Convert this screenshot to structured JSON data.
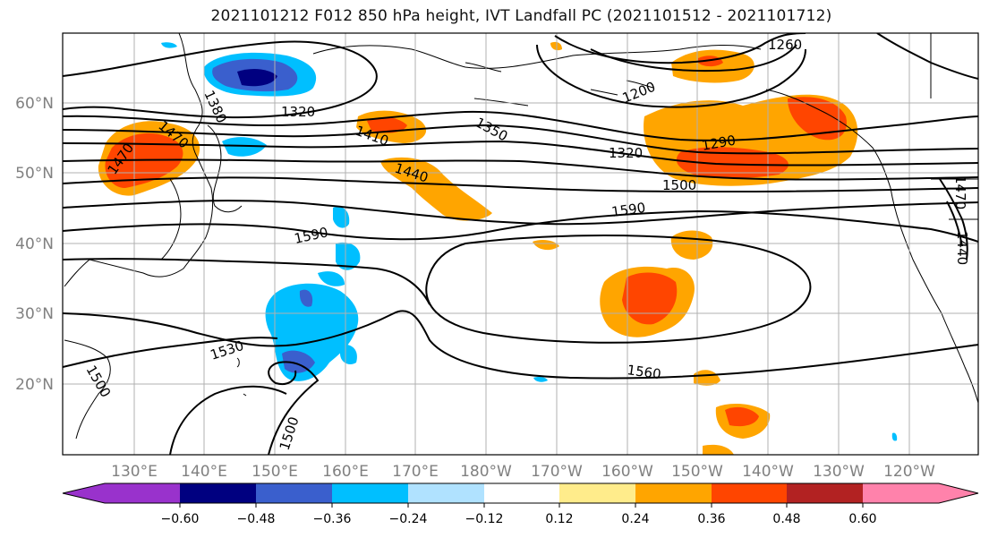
{
  "title": "2021101212 F012 850 hPa height, IVT Landfall PC (2021101512 - 2021101712)",
  "axes": {
    "lat_labels": [
      "60°N",
      "50°N",
      "40°N",
      "30°N",
      "20°N"
    ],
    "lon_labels": [
      "130°E",
      "140°E",
      "150°E",
      "160°E",
      "170°E",
      "180°W",
      "170°W",
      "160°W",
      "150°W",
      "140°W",
      "130°W",
      "120°W"
    ],
    "tick_color": "#808080"
  },
  "colorbar": {
    "colors": [
      "#9932cc",
      "#000080",
      "#3a5fcd",
      "#00bfff",
      "#b0e2ff",
      "#ffffff",
      "#ffec8b",
      "#ffa500",
      "#ff4500",
      "#b22222",
      "#ff82ab"
    ],
    "tick_labels": [
      "−0.60",
      "−0.48",
      "−0.36",
      "−0.24",
      "−0.12",
      "0.12",
      "0.24",
      "0.36",
      "0.48",
      "0.60"
    ]
  },
  "contour_labels": [
    {
      "text": "1260"
    },
    {
      "text": "1200"
    },
    {
      "text": "1320"
    },
    {
      "text": "1350"
    },
    {
      "text": "1320"
    },
    {
      "text": "1290"
    },
    {
      "text": "1380"
    },
    {
      "text": "1410"
    },
    {
      "text": "1440"
    },
    {
      "text": "1470"
    },
    {
      "text": "1470"
    },
    {
      "text": "1500"
    },
    {
      "text": "1590"
    },
    {
      "text": "1590"
    },
    {
      "text": "1530"
    },
    {
      "text": "1560"
    },
    {
      "text": "1500"
    },
    {
      "text": "1500"
    },
    {
      "text": "1470"
    },
    {
      "text": "1440"
    }
  ]
}
